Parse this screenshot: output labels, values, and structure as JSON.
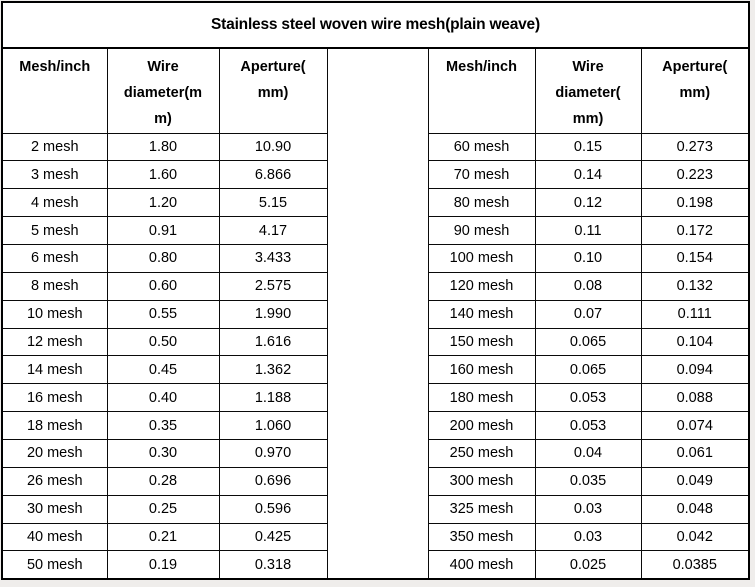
{
  "title": "Stainless steel woven wire mesh(plain weave)",
  "columns": [
    "Mesh/inch",
    "Wire diameter(mm)",
    "Aperture(mm)"
  ],
  "colors": {
    "border": "#000000",
    "table_background": "#ffffff",
    "page_background": "#efedeb",
    "text": "#000000"
  },
  "left_table": {
    "header_lines": [
      [
        "Mesh/inch"
      ],
      [
        "Wire",
        "diameter(m",
        "m)"
      ],
      [
        "Aperture(",
        "mm)"
      ]
    ],
    "rows": [
      [
        "2 mesh",
        "1.80",
        "10.90"
      ],
      [
        "3 mesh",
        "1.60",
        "6.866"
      ],
      [
        "4 mesh",
        "1.20",
        "5.15"
      ],
      [
        "5 mesh",
        "0.91",
        "4.17"
      ],
      [
        "6 mesh",
        "0.80",
        "3.433"
      ],
      [
        "8 mesh",
        "0.60",
        "2.575"
      ],
      [
        "10 mesh",
        "0.55",
        "1.990"
      ],
      [
        "12 mesh",
        "0.50",
        "1.616"
      ],
      [
        "14 mesh",
        "0.45",
        "1.362"
      ],
      [
        "16 mesh",
        "0.40",
        "1.188"
      ],
      [
        "18 mesh",
        "0.35",
        "1.060"
      ],
      [
        "20 mesh",
        "0.30",
        "0.970"
      ],
      [
        "26 mesh",
        "0.28",
        "0.696"
      ],
      [
        "30 mesh",
        "0.25",
        "0.596"
      ],
      [
        "40 mesh",
        "0.21",
        "0.425"
      ],
      [
        "50 mesh",
        "0.19",
        "0.318"
      ]
    ]
  },
  "right_table": {
    "header_lines": [
      [
        "Mesh/inch"
      ],
      [
        "Wire",
        "diameter(",
        "mm)"
      ],
      [
        "Aperture(",
        "mm)"
      ]
    ],
    "rows": [
      [
        "60 mesh",
        "0.15",
        "0.273"
      ],
      [
        "70 mesh",
        "0.14",
        "0.223"
      ],
      [
        "80 mesh",
        "0.12",
        "0.198"
      ],
      [
        "90 mesh",
        "0.11",
        "0.172"
      ],
      [
        "100 mesh",
        "0.10",
        "0.154"
      ],
      [
        "120 mesh",
        "0.08",
        "0.132"
      ],
      [
        "140 mesh",
        "0.07",
        "0.111"
      ],
      [
        "150 mesh",
        "0.065",
        "0.104"
      ],
      [
        "160 mesh",
        "0.065",
        "0.094"
      ],
      [
        "180 mesh",
        "0.053",
        "0.088"
      ],
      [
        "200 mesh",
        "0.053",
        "0.074"
      ],
      [
        "250 mesh",
        "0.04",
        "0.061"
      ],
      [
        "300 mesh",
        "0.035",
        "0.049"
      ],
      [
        "325 mesh",
        "0.03",
        "0.048"
      ],
      [
        "350 mesh",
        "0.03",
        "0.042"
      ],
      [
        "400 mesh",
        "0.025",
        "0.0385"
      ]
    ]
  }
}
